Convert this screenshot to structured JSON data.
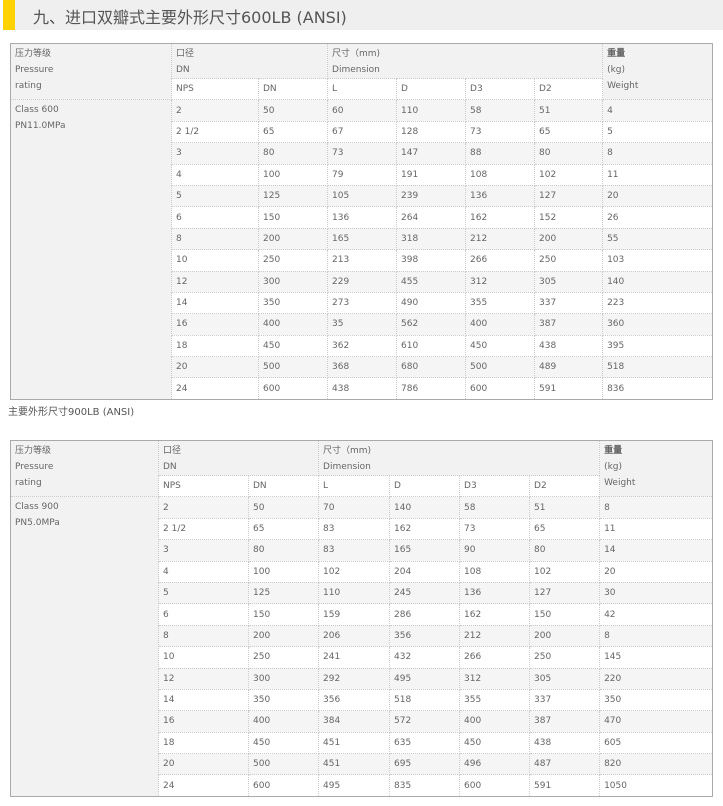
{
  "title": "九、进口双瓣式主要外形尺寸600LB (ANSI)",
  "caption": "主要外形尺寸900LB (ANSI)",
  "colors": {
    "accent": "#ffd200",
    "header_bg": "#efefef"
  },
  "tables": [
    {
      "header": {
        "rating": [
          "压力等级",
          "Pressure",
          "rating"
        ],
        "size": [
          "口径",
          "DN"
        ],
        "dimension": [
          "尺寸（mm)",
          "Dimension"
        ],
        "weight": [
          "重量",
          "(kg)",
          "Weight"
        ],
        "sub": [
          "NPS",
          "DN",
          "L",
          "D",
          "D3",
          "D2"
        ]
      },
      "rating": [
        "Class 600",
        "PN11.0MPa"
      ],
      "rows": [
        [
          "2",
          "50",
          "60",
          "110",
          "58",
          "51",
          "4"
        ],
        [
          "2 1/2",
          "65",
          "67",
          "128",
          "73",
          "65",
          "5"
        ],
        [
          "3",
          "80",
          "73",
          "147",
          "88",
          "80",
          "8"
        ],
        [
          "4",
          "100",
          "79",
          "191",
          "108",
          "102",
          "11"
        ],
        [
          "5",
          "125",
          "105",
          "239",
          "136",
          "127",
          "20"
        ],
        [
          "6",
          "150",
          "136",
          "264",
          "162",
          "152",
          "26"
        ],
        [
          "8",
          "200",
          "165",
          "318",
          "212",
          "200",
          "55"
        ],
        [
          "10",
          "250",
          "213",
          "398",
          "266",
          "250",
          "103"
        ],
        [
          "12",
          "300",
          "229",
          "455",
          "312",
          "305",
          "140"
        ],
        [
          "14",
          "350",
          "273",
          "490",
          "355",
          "337",
          "223"
        ],
        [
          "16",
          "400",
          "35",
          "562",
          "400",
          "387",
          "360"
        ],
        [
          "18",
          "450",
          "362",
          "610",
          "450",
          "438",
          "395"
        ],
        [
          "20",
          "500",
          "368",
          "680",
          "500",
          "489",
          "518"
        ],
        [
          "24",
          "600",
          "438",
          "786",
          "600",
          "591",
          "836"
        ]
      ]
    },
    {
      "header": {
        "rating": [
          "压力等级",
          "Pressure",
          "rating"
        ],
        "size": [
          "口径",
          "DN"
        ],
        "dimension": [
          "尺寸（mm)",
          "Dimension"
        ],
        "weight": [
          "重量",
          "(kg)",
          "Weight"
        ],
        "sub": [
          "NPS",
          "DN",
          "L",
          "D",
          "D3",
          "D2"
        ]
      },
      "rating": [
        "Class 900",
        "PN5.0MPa"
      ],
      "rows": [
        [
          "2",
          "50",
          "70",
          "140",
          "58",
          "51",
          "8"
        ],
        [
          "2 1/2",
          "65",
          "83",
          "162",
          "73",
          "65",
          "11"
        ],
        [
          "3",
          "80",
          "83",
          "165",
          "90",
          "80",
          "14"
        ],
        [
          "4",
          "100",
          "102",
          "204",
          "108",
          "102",
          "20"
        ],
        [
          "5",
          "125",
          "110",
          "245",
          "136",
          "127",
          "30"
        ],
        [
          "6",
          "150",
          "159",
          "286",
          "162",
          "150",
          "42"
        ],
        [
          "8",
          "200",
          "206",
          "356",
          "212",
          "200",
          "8"
        ],
        [
          "10",
          "250",
          "241",
          "432",
          "266",
          "250",
          "145"
        ],
        [
          "12",
          "300",
          "292",
          "495",
          "312",
          "305",
          "220"
        ],
        [
          "14",
          "350",
          "356",
          "518",
          "355",
          "337",
          "350"
        ],
        [
          "16",
          "400",
          "384",
          "572",
          "400",
          "387",
          "470"
        ],
        [
          "18",
          "450",
          "451",
          "635",
          "450",
          "438",
          "605"
        ],
        [
          "20",
          "500",
          "451",
          "695",
          "496",
          "487",
          "820"
        ],
        [
          "24",
          "600",
          "495",
          "835",
          "600",
          "591",
          "1050"
        ]
      ]
    }
  ]
}
